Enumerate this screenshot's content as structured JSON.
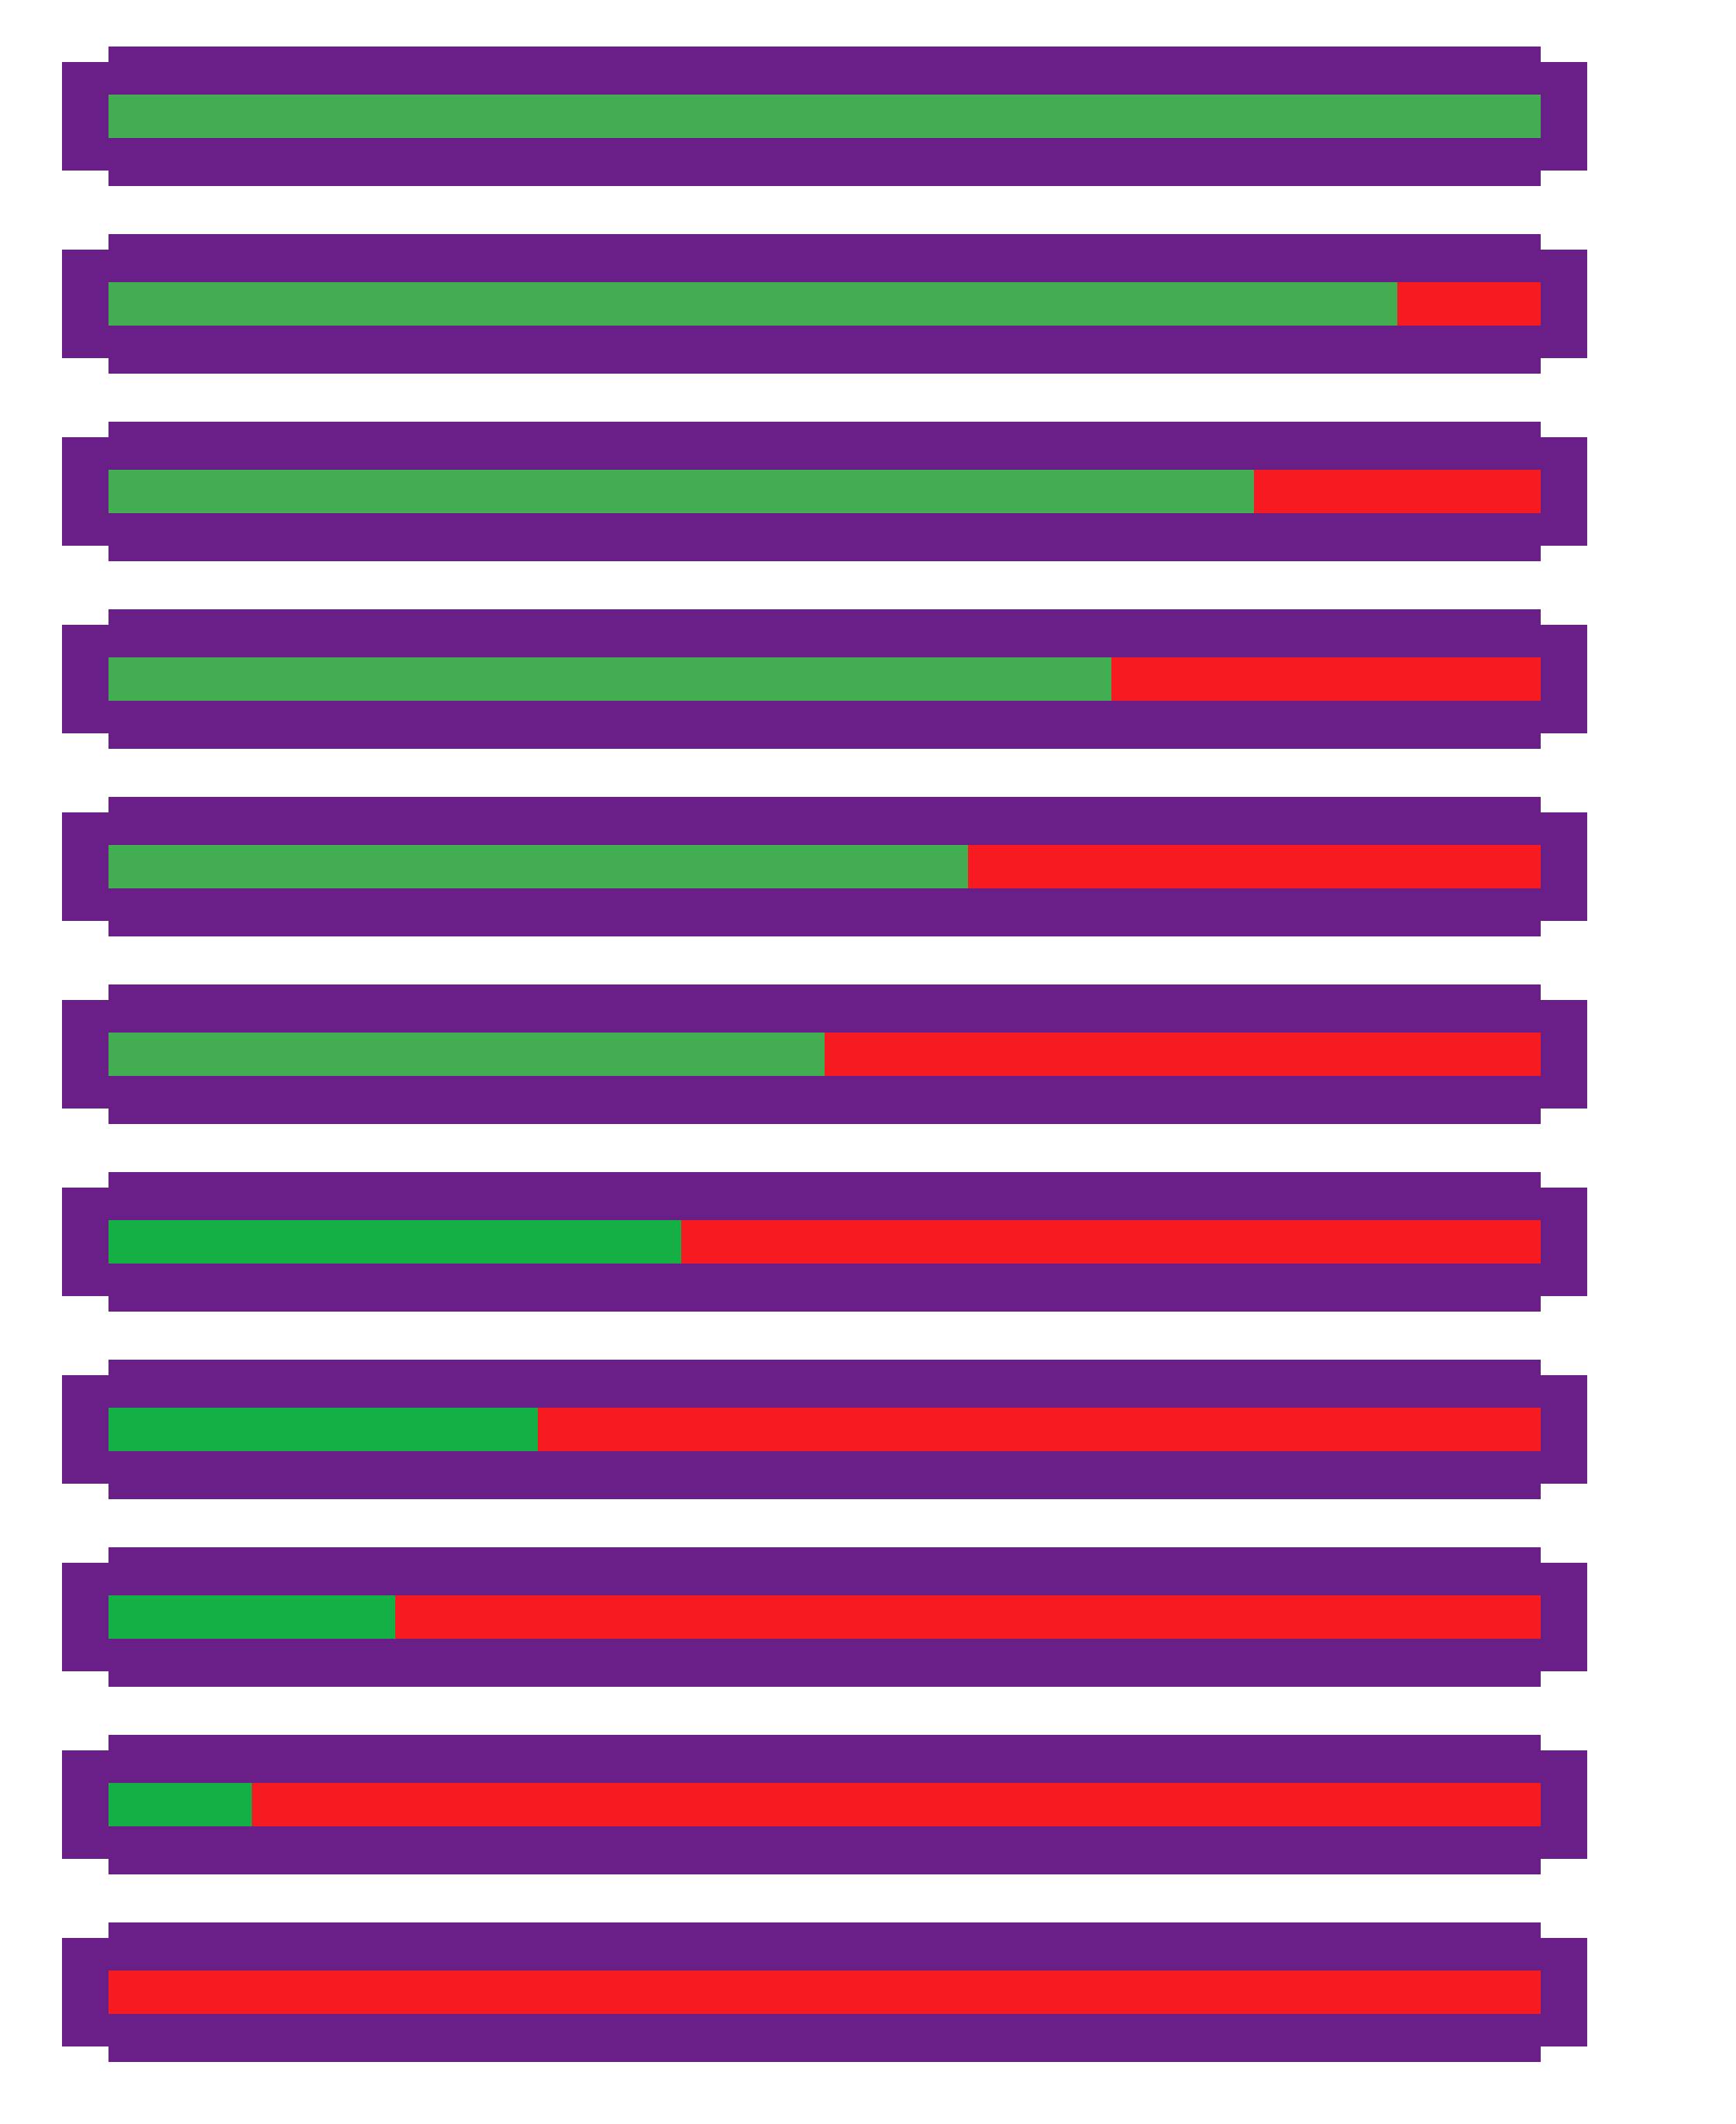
{
  "colors": {
    "frame": "#6a1e88",
    "empty": "#f81a21",
    "fill_light_green": "#43ae51",
    "fill_dark_green": "#14af45",
    "background": "#ffffff"
  },
  "health_bars": [
    {
      "fill": 1.0,
      "fill_color": "light-green"
    },
    {
      "fill": 0.9,
      "fill_color": "light-green"
    },
    {
      "fill": 0.8,
      "fill_color": "light-green"
    },
    {
      "fill": 0.7,
      "fill_color": "light-green"
    },
    {
      "fill": 0.6,
      "fill_color": "light-green"
    },
    {
      "fill": 0.5,
      "fill_color": "light-green"
    },
    {
      "fill": 0.4,
      "fill_color": "dark-green"
    },
    {
      "fill": 0.3,
      "fill_color": "dark-green"
    },
    {
      "fill": 0.2,
      "fill_color": "dark-green"
    },
    {
      "fill": 0.1,
      "fill_color": "dark-green"
    },
    {
      "fill": 0.0,
      "fill_color": "dark-green"
    }
  ]
}
